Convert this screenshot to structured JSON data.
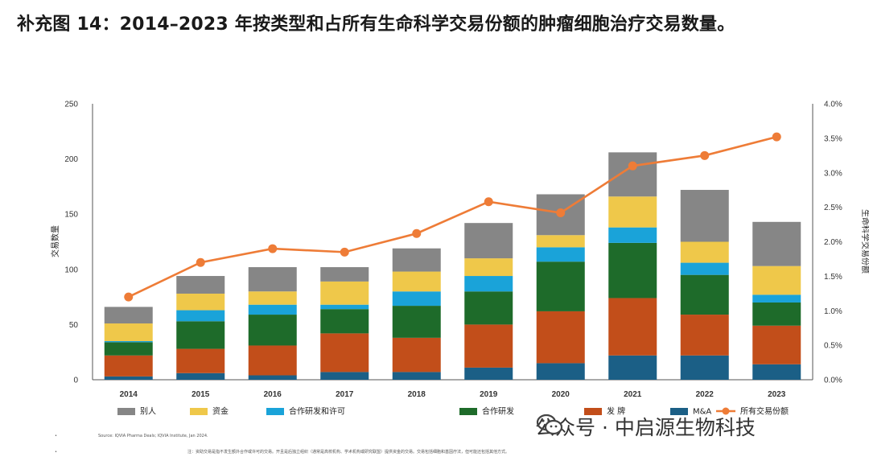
{
  "title": "补充图 14：2014–2023 年按类型和占所有生命科学交易份额的肿瘤细胞治疗交易数量。",
  "chart_data": {
    "type": "bar",
    "stacked": true,
    "categories": [
      "2014",
      "2015",
      "2016",
      "2017",
      "2018",
      "2019",
      "2020",
      "2021",
      "2022",
      "2023"
    ],
    "series": [
      {
        "name": "M&A",
        "color": "#1b5f86",
        "values": [
          3,
          6,
          4,
          7,
          7,
          11,
          15,
          22,
          22,
          14
        ]
      },
      {
        "name": "发 牌",
        "color": "#c24e1a",
        "values": [
          19,
          22,
          27,
          35,
          31,
          39,
          47,
          52,
          37,
          35
        ]
      },
      {
        "name": "合作研发",
        "color": "#1e6b2a",
        "values": [
          12,
          25,
          28,
          22,
          29,
          30,
          45,
          50,
          36,
          21
        ]
      },
      {
        "name": "合作研发和许可",
        "color": "#1aa3d9",
        "values": [
          1,
          10,
          9,
          4,
          13,
          14,
          13,
          14,
          11,
          7
        ]
      },
      {
        "name": "资金",
        "color": "#efc84a",
        "values": [
          16,
          15,
          12,
          21,
          18,
          16,
          11,
          28,
          19,
          26
        ]
      },
      {
        "name": "别人",
        "color": "#868686",
        "values": [
          15,
          16,
          22,
          13,
          21,
          32,
          37,
          40,
          47,
          40
        ]
      }
    ],
    "line": {
      "name": "所有交易份额",
      "color": "#ee7c37",
      "values": [
        1.2,
        1.7,
        1.9,
        1.85,
        2.12,
        2.58,
        2.42,
        3.1,
        3.25,
        3.52
      ]
    },
    "ylabel": "交易数量",
    "y2label": "生命科学交易份额",
    "ylim": [
      0,
      250
    ],
    "y2lim": [
      0,
      4.0
    ],
    "yticks": [
      0,
      50,
      100,
      150,
      200,
      250
    ],
    "y2ticks": [
      "0.0%",
      "0.5%",
      "1.0%",
      "1.5%",
      "2.0%",
      "2.5%",
      "3.0%",
      "3.5%",
      "4.0%"
    ],
    "legend_order": [
      "别人",
      "资金",
      "合作研发和许可",
      "合作研发",
      "发 牌",
      "M&A",
      "所有交易份额"
    ]
  },
  "footnotes": {
    "source": "Source: IQVIA Pharma Deals; IQVIA Institute, Jan 2024.",
    "note": "注：资助交易是指不发生额外合作或许可的交易。开且是后独立组织（通常是高校机构、学术机构或研究联盟）提供资金的交易。交易包括细胞和基因疗法，但可能还包括其他方式。"
  },
  "watermark": "公众号 · 中启源生物科技"
}
